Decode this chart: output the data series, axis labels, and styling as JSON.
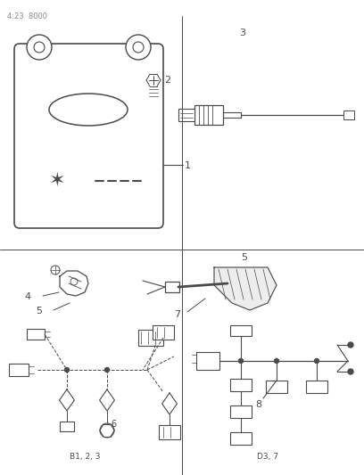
{
  "title": "4:23  8000",
  "bg_color": "#ffffff",
  "line_color": "#4a4a4a",
  "label_1": "1",
  "label_2": "2",
  "label_3": "3",
  "label_4": "4",
  "label_5": "5",
  "label_6": "6",
  "label_7": "7",
  "label_8": "8",
  "bottom_label_left": "B1, 2, 3",
  "bottom_label_right": "D3, 7"
}
